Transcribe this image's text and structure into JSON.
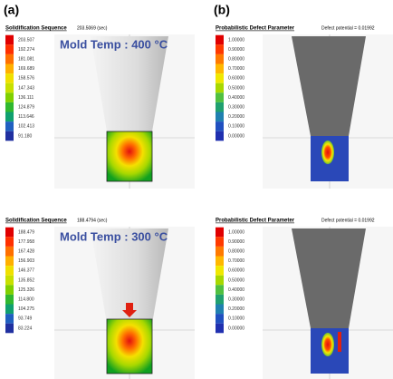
{
  "panels": [
    {
      "label": "(a)",
      "title": "Solidification Sequence",
      "time": "203.5069 (sec)",
      "mold_temp": "Mold Temp : 400 °C",
      "legend": [
        "203.507",
        "192.274",
        "181.081",
        "169.689",
        "158.576",
        "147.343",
        "136.111",
        "124.879",
        "113.646",
        "102.413",
        "91.180"
      ]
    },
    {
      "label": "(b)",
      "title": "Probabilistic Defect Parameter",
      "note": "Defect potential = 0.01992",
      "legend": [
        "1.00000",
        "0.90000",
        "0.80000",
        "0.70000",
        "0.60000",
        "0.50000",
        "0.40000",
        "0.30000",
        "0.20000",
        "0.10000",
        "0.00000"
      ]
    },
    {
      "title": "Solidification Sequence",
      "time": "188.4794 (sec)",
      "mold_temp": "Mold Temp : 300 °C",
      "legend": [
        "188.479",
        "177.958",
        "167.428",
        "156.903",
        "146.377",
        "135.852",
        "125.326",
        "114.800",
        "104.275",
        "93.749",
        "83.224"
      ]
    },
    {
      "title": "Probabilistic Defect Parameter",
      "note": "Defect potential = 0.01992",
      "legend": [
        "1.00000",
        "0.90000",
        "0.80000",
        "0.70000",
        "0.60000",
        "0.50000",
        "0.40000",
        "0.30000",
        "0.20000",
        "0.10000",
        "0.00000"
      ]
    }
  ]
}
